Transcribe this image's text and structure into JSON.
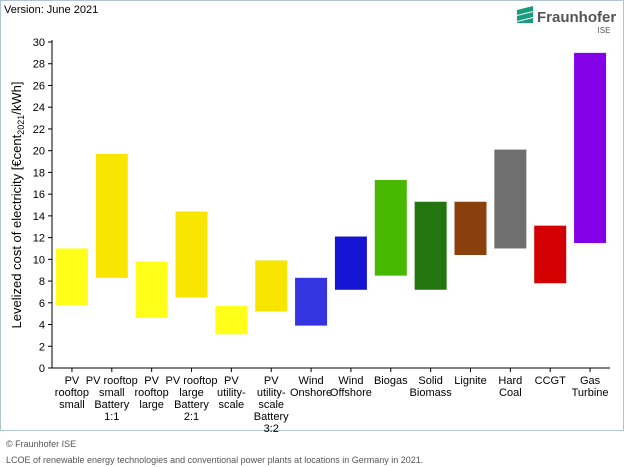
{
  "chart_data": {
    "type": "range-bar",
    "version": "Version: June 2021",
    "logo": {
      "name": "Fraunhofer",
      "unit": "ISE"
    },
    "ylabel": {
      "before": "Levelized cost of electricity [€cent",
      "sub": "2021",
      "after": "/kWh]"
    },
    "categories": [
      "PV\nrooftop\nsmall",
      "PV rooftop\nsmall\nBattery\n1:1",
      "PV\nrooftop\nlarge",
      "PV rooftop\nlarge\nBattery\n2:1",
      "PV\nutility-\nscale",
      "PV\nutility-\nscale\nBattery\n3:2",
      "Wind\nOnshore",
      "Wind\nOffshore",
      "Biogas",
      "Solid\nBiomass",
      "Lignite",
      "Hard\nCoal",
      "CCGT",
      "Gas\nTurbine"
    ],
    "low": [
      5.8,
      8.3,
      4.6,
      6.5,
      3.1,
      5.2,
      3.9,
      7.2,
      8.5,
      7.2,
      10.4,
      11.0,
      7.8,
      11.5
    ],
    "high": [
      11.0,
      19.7,
      9.8,
      14.4,
      5.7,
      9.9,
      8.3,
      12.1,
      17.3,
      15.3,
      15.3,
      20.1,
      13.1,
      29.0
    ],
    "colors": [
      "#ffff1a",
      "#f8e600",
      "#ffff1a",
      "#f8e600",
      "#ffff1a",
      "#f8e600",
      "#3434e0",
      "#1414d2",
      "#47b800",
      "#23760f",
      "#8a400c",
      "#6f6f6f",
      "#d20000",
      "#8400e6"
    ],
    "ylim": [
      0,
      30
    ],
    "yticks": [
      0,
      2,
      4,
      6,
      8,
      10,
      12,
      14,
      16,
      18,
      20,
      22,
      24,
      26,
      28,
      30
    ],
    "copyright": "© Fraunhofer ISE",
    "caption": "LCOE of renewable energy technologies and conventional power plants at locations in Germany in 2021."
  }
}
